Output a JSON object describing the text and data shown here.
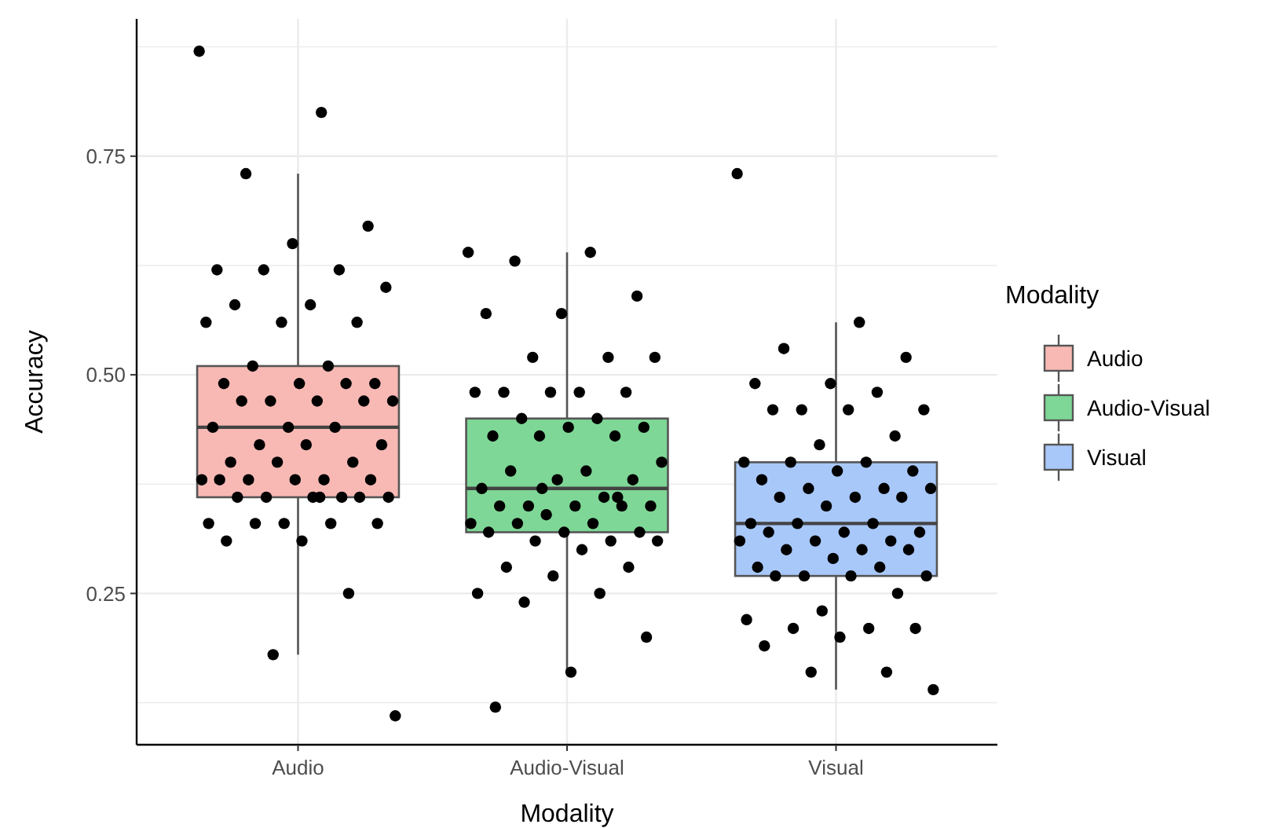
{
  "chart_data": {
    "type": "box",
    "xlabel": "Modality",
    "ylabel": "Accuracy",
    "legend_title": "Modality",
    "legend": "right",
    "grid": true,
    "marker": "circle",
    "categories": [
      "Audio",
      "Audio-Visual",
      "Visual"
    ],
    "ylim": [
      0.077,
      0.907
    ],
    "yticks": [
      {
        "value": 0.125,
        "label": null
      },
      {
        "value": 0.25,
        "label": "0.25"
      },
      {
        "value": 0.375,
        "label": null
      },
      {
        "value": 0.5,
        "label": "0.50"
      },
      {
        "value": 0.625,
        "label": null
      },
      {
        "value": 0.75,
        "label": "0.75"
      },
      {
        "value": 0.875,
        "label": null
      }
    ],
    "series": [
      {
        "type": "box",
        "name": "Audio",
        "color": "#f8b9b5",
        "boxes": [
          {
            "low": 0.18,
            "q1": 0.36,
            "median": 0.44,
            "q3": 0.51,
            "high": 0.73
          },
          null,
          null
        ]
      },
      {
        "name": "Audio-Visual",
        "color": "#7ed796",
        "boxes": [
          null,
          {
            "low": 0.16,
            "q1": 0.32,
            "median": 0.37,
            "q3": 0.45,
            "high": 0.64
          },
          null
        ]
      },
      {
        "name": "Visual",
        "color": "#a8c8fa",
        "boxes": [
          null,
          null,
          {
            "low": 0.14,
            "q1": 0.27,
            "median": 0.33,
            "q3": 0.4,
            "high": 0.56
          }
        ]
      },
      {
        "type": "scatter",
        "color": "#000000",
        "x": [
          "Audio",
          "Audio",
          "Audio",
          "Audio",
          "Audio",
          "Audio",
          "Audio",
          "Audio",
          "Audio",
          "Audio",
          "Audio",
          "Audio",
          "Audio",
          "Audio",
          "Audio",
          "Audio",
          "Audio",
          "Audio",
          "Audio",
          "Audio",
          "Audio",
          "Audio",
          "Audio",
          "Audio",
          "Audio",
          "Audio",
          "Audio",
          "Audio",
          "Audio",
          "Audio",
          "Audio",
          "Audio",
          "Audio",
          "Audio",
          "Audio",
          "Audio",
          "Audio",
          "Audio",
          "Audio",
          "Audio",
          "Audio",
          "Audio",
          "Audio",
          "Audio",
          "Audio",
          "Audio",
          "Audio",
          "Audio",
          "Audio",
          "Audio",
          "Audio",
          "Audio",
          "Audio",
          "Audio",
          "Audio",
          "Audio",
          "Audio"
        ],
        "values": [
          0.87,
          0.8,
          0.73,
          0.67,
          0.65,
          0.62,
          0.62,
          0.62,
          0.6,
          0.58,
          0.58,
          0.56,
          0.56,
          0.56,
          0.51,
          0.51,
          0.49,
          0.49,
          0.49,
          0.49,
          0.47,
          0.47,
          0.47,
          0.47,
          0.47,
          0.44,
          0.44,
          0.44,
          0.42,
          0.42,
          0.42,
          0.4,
          0.4,
          0.4,
          0.38,
          0.38,
          0.38,
          0.38,
          0.38,
          0.38,
          0.36,
          0.36,
          0.36,
          0.36,
          0.36,
          0.36,
          0.33,
          0.33,
          0.33,
          0.33,
          0.33,
          0.31,
          0.31,
          0.25,
          0.18,
          0.11,
          0.36
        ]
      },
      {
        "type": "scatter",
        "color": "#000000",
        "x": [
          "Audio-Visual",
          "Audio-Visual",
          "Audio-Visual",
          "Audio-Visual",
          "Audio-Visual",
          "Audio-Visual",
          "Audio-Visual",
          "Audio-Visual",
          "Audio-Visual",
          "Audio-Visual",
          "Audio-Visual",
          "Audio-Visual",
          "Audio-Visual",
          "Audio-Visual",
          "Audio-Visual",
          "Audio-Visual",
          "Audio-Visual",
          "Audio-Visual",
          "Audio-Visual",
          "Audio-Visual",
          "Audio-Visual",
          "Audio-Visual",
          "Audio-Visual",
          "Audio-Visual",
          "Audio-Visual",
          "Audio-Visual",
          "Audio-Visual",
          "Audio-Visual",
          "Audio-Visual",
          "Audio-Visual",
          "Audio-Visual",
          "Audio-Visual",
          "Audio-Visual",
          "Audio-Visual",
          "Audio-Visual",
          "Audio-Visual",
          "Audio-Visual",
          "Audio-Visual",
          "Audio-Visual",
          "Audio-Visual",
          "Audio-Visual",
          "Audio-Visual",
          "Audio-Visual",
          "Audio-Visual",
          "Audio-Visual",
          "Audio-Visual",
          "Audio-Visual",
          "Audio-Visual",
          "Audio-Visual",
          "Audio-Visual",
          "Audio-Visual",
          "Audio-Visual",
          "Audio-Visual",
          "Audio-Visual",
          "Audio-Visual"
        ],
        "values": [
          0.64,
          0.64,
          0.63,
          0.59,
          0.57,
          0.57,
          0.52,
          0.52,
          0.52,
          0.48,
          0.48,
          0.48,
          0.48,
          0.48,
          0.45,
          0.45,
          0.44,
          0.44,
          0.43,
          0.43,
          0.43,
          0.4,
          0.39,
          0.39,
          0.38,
          0.38,
          0.37,
          0.36,
          0.35,
          0.35,
          0.35,
          0.35,
          0.35,
          0.34,
          0.33,
          0.33,
          0.33,
          0.32,
          0.32,
          0.32,
          0.31,
          0.31,
          0.31,
          0.3,
          0.28,
          0.28,
          0.27,
          0.25,
          0.25,
          0.24,
          0.2,
          0.16,
          0.12,
          0.36,
          0.37
        ]
      },
      {
        "type": "scatter",
        "color": "#000000",
        "x": [
          "Visual",
          "Visual",
          "Visual",
          "Visual",
          "Visual",
          "Visual",
          "Visual",
          "Visual",
          "Visual",
          "Visual",
          "Visual",
          "Visual",
          "Visual",
          "Visual",
          "Visual",
          "Visual",
          "Visual",
          "Visual",
          "Visual",
          "Visual",
          "Visual",
          "Visual",
          "Visual",
          "Visual",
          "Visual",
          "Visual",
          "Visual",
          "Visual",
          "Visual",
          "Visual",
          "Visual",
          "Visual",
          "Visual",
          "Visual",
          "Visual",
          "Visual",
          "Visual",
          "Visual",
          "Visual",
          "Visual",
          "Visual",
          "Visual",
          "Visual",
          "Visual",
          "Visual",
          "Visual",
          "Visual",
          "Visual",
          "Visual",
          "Visual",
          "Visual",
          "Visual",
          "Visual",
          "Visual",
          "Visual",
          "Visual"
        ],
        "values": [
          0.73,
          0.56,
          0.53,
          0.52,
          0.49,
          0.49,
          0.48,
          0.46,
          0.46,
          0.46,
          0.46,
          0.43,
          0.42,
          0.4,
          0.4,
          0.4,
          0.39,
          0.39,
          0.38,
          0.37,
          0.37,
          0.37,
          0.36,
          0.36,
          0.36,
          0.35,
          0.33,
          0.33,
          0.33,
          0.32,
          0.32,
          0.32,
          0.31,
          0.31,
          0.31,
          0.3,
          0.3,
          0.3,
          0.29,
          0.28,
          0.28,
          0.27,
          0.27,
          0.27,
          0.27,
          0.25,
          0.23,
          0.22,
          0.21,
          0.21,
          0.21,
          0.2,
          0.19,
          0.16,
          0.16,
          0.14
        ]
      }
    ]
  }
}
